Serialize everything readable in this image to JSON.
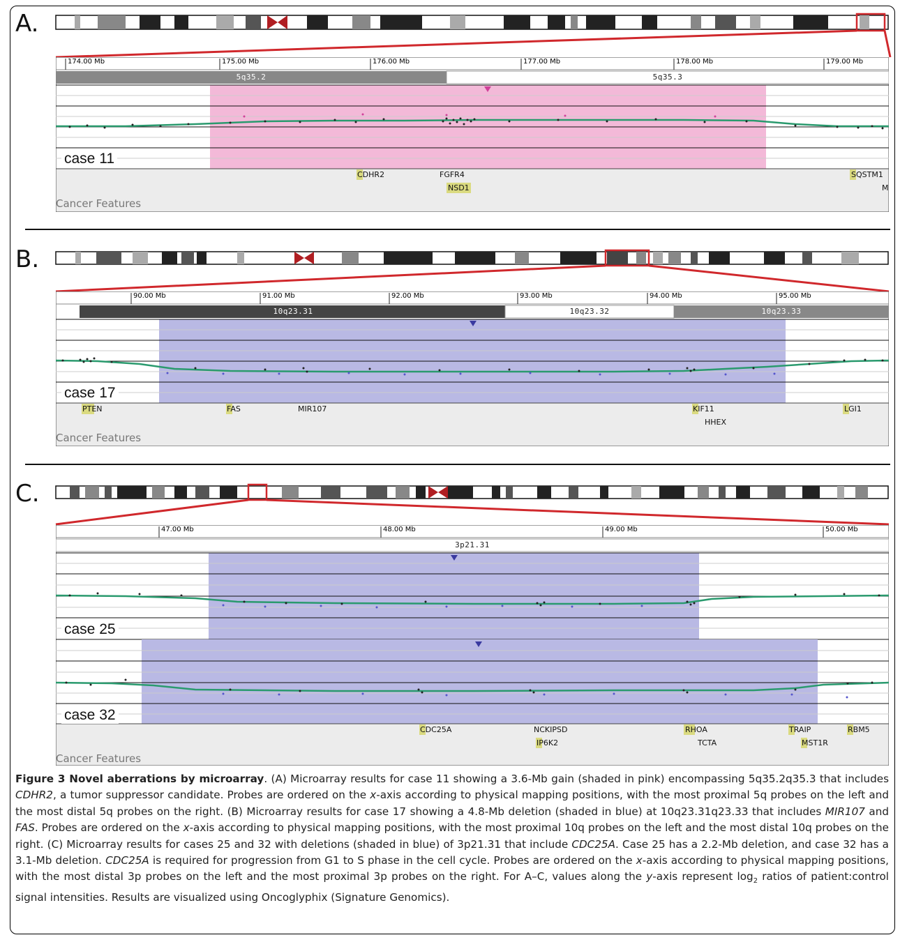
{
  "panels": {
    "a": {
      "letter": "A.",
      "case_labels": [
        "case 11"
      ],
      "mb_labels": [
        "174.00 Mb",
        "175.00 Mb",
        "176.00 Mb",
        "177.00 Mb",
        "178.00 Mb",
        "179.00 Mb"
      ],
      "bands": [
        "5q35.2",
        "5q35.3"
      ],
      "genes": [
        "CDHR2",
        "FGFR4",
        "NSD1",
        "SQSTM1",
        "M"
      ],
      "shading": "gain (pink)",
      "features_label": "Cancer Features"
    },
    "b": {
      "letter": "B.",
      "case_labels": [
        "case 17"
      ],
      "mb_labels": [
        "90.00 Mb",
        "91.00 Mb",
        "92.00 Mb",
        "93.00 Mb",
        "94.00 Mb",
        "95.00 Mb"
      ],
      "bands": [
        "10q23.31",
        "10q23.32",
        "10q23.33"
      ],
      "genes": [
        "PTEN",
        "FAS",
        "MIR107",
        "KIF11",
        "HHEX",
        "LGI1"
      ],
      "shading": "deletion (blue)",
      "features_label": "Cancer Features"
    },
    "c": {
      "letter": "C.",
      "case_labels": [
        "case 25",
        "case 32"
      ],
      "mb_labels": [
        "47.00 Mb",
        "48.00 Mb",
        "49.00 Mb",
        "50.00 Mb"
      ],
      "bands": [
        "3p21.31"
      ],
      "genes": [
        "CDC25A",
        "NCKIPSD",
        "IP6K2",
        "RHOA",
        "TCTA",
        "TRAIP",
        "MST1R",
        "RBM5"
      ],
      "shading": "deletion (blue)",
      "features_label": "Cancer Features"
    }
  },
  "colors": {
    "gain_shade": "#f3b9d8",
    "loss_shade": "#b9b9e4",
    "trend_line": "#2a9a6e",
    "selection_box": "#d0282c",
    "gene_highlight": "#dada80",
    "features_bg": "#ececec"
  },
  "caption": {
    "title": "Figure 3 Novel aberrations by microarray",
    "title_end": ".",
    "a_pre": " (A) Microarray results for case 11 showing a 3.6-Mb gain (shaded in pink) encompassing 5q35.2q35.3 that includes ",
    "a_gene": "CDHR2",
    "a_post": ", a tumor suppressor candidate. Probes are ordered on the ",
    "x1": "x",
    "a_post2": "-axis according to physical mapping positions, with the most proximal 5q probes on the left and the most distal 5q probes on the right. (B) Microarray results for case 17 showing a 4.8-Mb deletion (shaded in blue) at 10q23.31q23.33 that includes ",
    "b_gene1": "MIR107",
    "b_and": " and ",
    "b_gene2": "FAS",
    "b_post": ". Probes are ordered on the ",
    "x2": "x",
    "b_post2": "-axis according to physical mapping positions, with the most proximal 10q probes on the left and the most distal 10q probes on the right. (C) Microarray results for cases 25 and 32 with deletions (shaded in blue) of 3p21.31 that include ",
    "c_gene1": "CDC25A",
    "c_post": ". Case 25 has a 2.2-Mb deletion, and case 32 has a 3.1-Mb deletion. ",
    "c_gene2": "CDC25A",
    "c_post2": " is required for progression from G1 to S phase in the cell cycle. Probes are ordered on the ",
    "x3": "x",
    "c_post3": "-axis according to physical mapping positions, with the most distal 3p probes on the left and the most proximal 3p probes on the right. For A–C, values along the ",
    "y1": "y",
    "c_post4": "-axis represent log",
    "sub": "2",
    "c_post5": " ratios of patient:control signal intensities. Results are visualized using Oncoglyphix (Signature Genomics)."
  }
}
